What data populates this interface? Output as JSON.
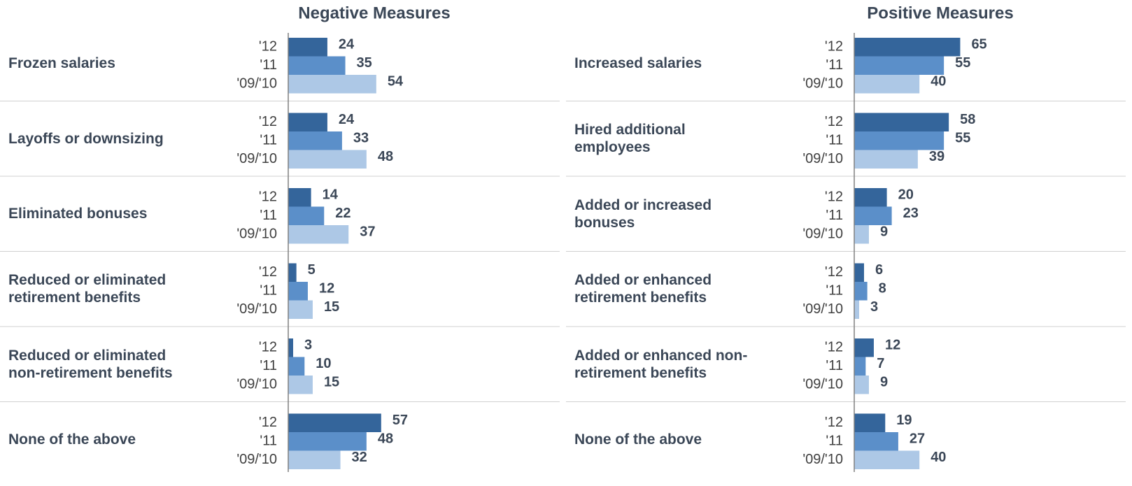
{
  "chart_data": [
    {
      "type": "bar",
      "orientation": "horizontal",
      "title": "Negative Measures",
      "categories": [
        "Frozen salaries",
        "Layoffs or downsizing",
        "Eliminated bonuses",
        "Reduced or eliminated retirement benefits",
        "Reduced or eliminated non-retirement benefits",
        "None of the above"
      ],
      "series": [
        {
          "name": "'12",
          "color": "#34659b",
          "values": [
            24,
            24,
            14,
            5,
            3,
            57
          ]
        },
        {
          "name": "'11",
          "color": "#5b8fc9",
          "values": [
            35,
            33,
            22,
            12,
            10,
            48
          ]
        },
        {
          "name": "'09/'10",
          "color": "#adc8e6",
          "values": [
            54,
            48,
            37,
            15,
            15,
            32
          ]
        }
      ],
      "xlim": [
        0,
        100
      ]
    },
    {
      "type": "bar",
      "orientation": "horizontal",
      "title": "Positive Measures",
      "categories": [
        "Increased salaries",
        "Hired additional employees",
        "Added or increased bonuses",
        "Added or enhanced retirement benefits",
        "Added or enhanced non-retirement benefits",
        "None of the above"
      ],
      "series": [
        {
          "name": "'12",
          "color": "#34659b",
          "values": [
            65,
            58,
            20,
            6,
            12,
            19
          ]
        },
        {
          "name": "'11",
          "color": "#5b8fc9",
          "values": [
            55,
            55,
            23,
            8,
            7,
            27
          ]
        },
        {
          "name": "'09/'10",
          "color": "#adc8e6",
          "values": [
            40,
            39,
            9,
            3,
            9,
            40
          ]
        }
      ],
      "xlim": [
        0,
        100
      ]
    }
  ]
}
